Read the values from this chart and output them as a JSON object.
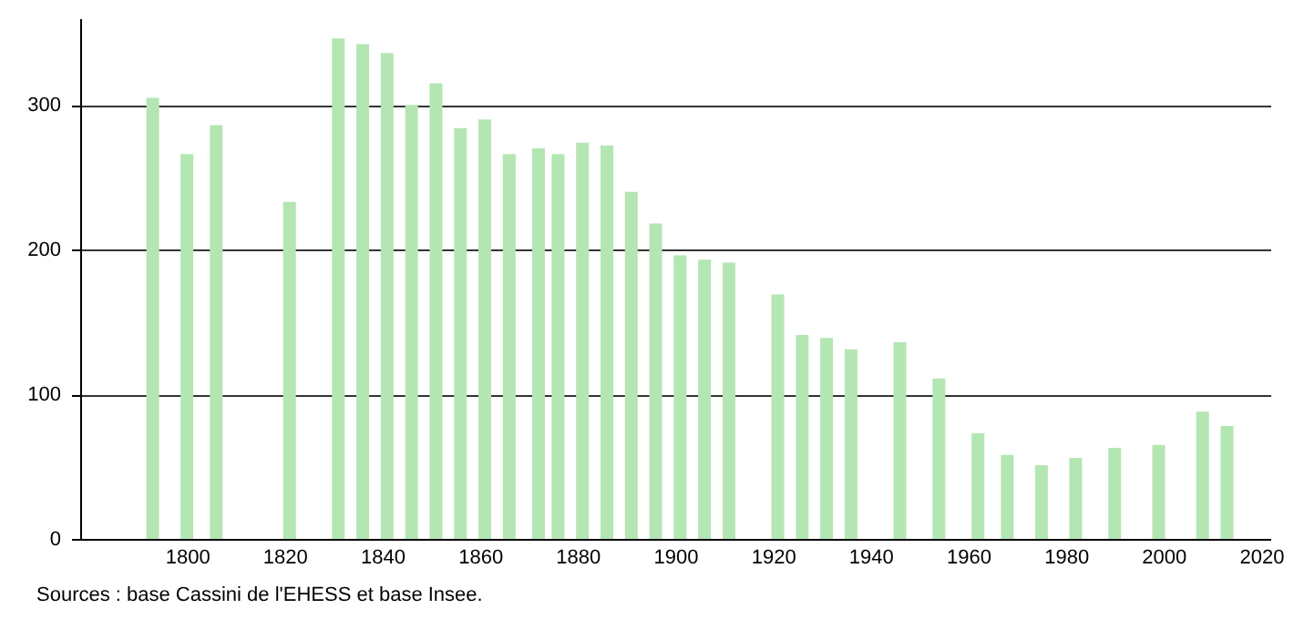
{
  "chart_data": {
    "type": "bar",
    "x": [
      1793,
      1800,
      1806,
      1821,
      1831,
      1836,
      1841,
      1846,
      1851,
      1856,
      1861,
      1866,
      1872,
      1876,
      1881,
      1886,
      1891,
      1896,
      1901,
      1906,
      1911,
      1921,
      1926,
      1931,
      1936,
      1946,
      1954,
      1962,
      1968,
      1975,
      1982,
      1990,
      1999,
      2008,
      2013
    ],
    "values": [
      305,
      266,
      286,
      233,
      346,
      342,
      336,
      300,
      315,
      284,
      290,
      266,
      270,
      266,
      274,
      272,
      240,
      218,
      196,
      193,
      191,
      169,
      141,
      139,
      131,
      136,
      111,
      73,
      58,
      51,
      56,
      63,
      65,
      88,
      78
    ],
    "color": "#b3e6b3",
    "xlim": [
      1780,
      2020
    ],
    "xticks": [
      1800,
      1820,
      1840,
      1860,
      1880,
      1900,
      1920,
      1940,
      1960,
      1980,
      2000,
      2020
    ],
    "ylim": [
      0,
      360
    ],
    "yticks": [
      0,
      100,
      200,
      300
    ],
    "grid": "y",
    "annotations": [
      "Sources : base Cassini de l'EHESS et base Insee."
    ]
  }
}
